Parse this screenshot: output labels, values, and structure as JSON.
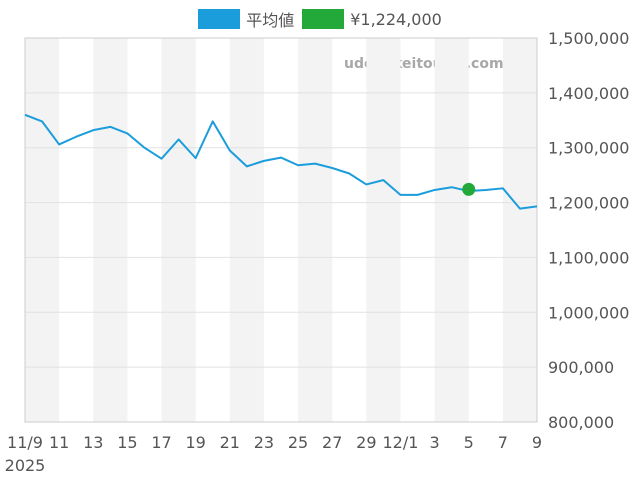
{
  "legend": [
    {
      "label": "平均値",
      "color": "#1b9ddc"
    },
    {
      "label": "¥1,224,000",
      "color": "#22a93a"
    }
  ],
  "watermark": "udedokeitoushi.com",
  "chart_data": {
    "type": "line",
    "title": "",
    "xlabel": "",
    "ylabel": "",
    "ylim": [
      800000,
      1500000
    ],
    "y_ticks": [
      "800,000",
      "900,000",
      "1,000,000",
      "1,100,000",
      "1,200,000",
      "1,300,000",
      "1,400,000",
      "1,500,000"
    ],
    "x_start": "2025-11-09",
    "x_end": "2025-12-09",
    "x_ticks": [
      {
        "date": "2025-11-09",
        "label": "11/9",
        "sublabel": "2025"
      },
      {
        "date": "2025-11-11",
        "label": "11"
      },
      {
        "date": "2025-11-13",
        "label": "13"
      },
      {
        "date": "2025-11-15",
        "label": "15"
      },
      {
        "date": "2025-11-17",
        "label": "17"
      },
      {
        "date": "2025-11-19",
        "label": "19"
      },
      {
        "date": "2025-11-21",
        "label": "21"
      },
      {
        "date": "2025-11-23",
        "label": "23"
      },
      {
        "date": "2025-11-25",
        "label": "25"
      },
      {
        "date": "2025-11-27",
        "label": "27"
      },
      {
        "date": "2025-11-29",
        "label": "29"
      },
      {
        "date": "2025-12-01",
        "label": "12/1"
      },
      {
        "date": "2025-12-03",
        "label": "3"
      },
      {
        "date": "2025-12-05",
        "label": "5"
      },
      {
        "date": "2025-12-07",
        "label": "7"
      },
      {
        "date": "2025-12-09",
        "label": "9"
      }
    ],
    "series": [
      {
        "name": "平均値",
        "color": "#1b9ddc",
        "points": [
          {
            "x": "2025-11-09",
            "y": 1360000
          },
          {
            "x": "2025-11-10",
            "y": 1348000
          },
          {
            "x": "2025-11-11",
            "y": 1306000
          },
          {
            "x": "2025-11-12",
            "y": 1320000
          },
          {
            "x": "2025-11-13",
            "y": 1332000
          },
          {
            "x": "2025-11-14",
            "y": 1338000
          },
          {
            "x": "2025-11-15",
            "y": 1326000
          },
          {
            "x": "2025-11-16",
            "y": 1300000
          },
          {
            "x": "2025-11-17",
            "y": 1280000
          },
          {
            "x": "2025-11-18",
            "y": 1315000
          },
          {
            "x": "2025-11-19",
            "y": 1281000
          },
          {
            "x": "2025-11-20",
            "y": 1348000
          },
          {
            "x": "2025-11-21",
            "y": 1295000
          },
          {
            "x": "2025-11-22",
            "y": 1266000
          },
          {
            "x": "2025-11-23",
            "y": 1276000
          },
          {
            "x": "2025-11-24",
            "y": 1282000
          },
          {
            "x": "2025-11-25",
            "y": 1268000
          },
          {
            "x": "2025-11-26",
            "y": 1271000
          },
          {
            "x": "2025-11-27",
            "y": 1263000
          },
          {
            "x": "2025-11-28",
            "y": 1253000
          },
          {
            "x": "2025-11-29",
            "y": 1233000
          },
          {
            "x": "2025-11-30",
            "y": 1241000
          },
          {
            "x": "2025-12-01",
            "y": 1214000
          },
          {
            "x": "2025-12-02",
            "y": 1214000
          },
          {
            "x": "2025-12-03",
            "y": 1223000
          },
          {
            "x": "2025-12-04",
            "y": 1228000
          },
          {
            "x": "2025-12-05",
            "y": 1221000
          },
          {
            "x": "2025-12-06",
            "y": 1223000
          },
          {
            "x": "2025-12-07",
            "y": 1226000
          },
          {
            "x": "2025-12-08",
            "y": 1189000
          },
          {
            "x": "2025-12-09",
            "y": 1193000
          }
        ]
      },
      {
        "name": "¥1,224,000",
        "color": "#22a93a",
        "points": [
          {
            "x": "2025-12-05",
            "y": 1224000
          }
        ]
      }
    ],
    "grid": true,
    "legend_position": "top-center"
  }
}
